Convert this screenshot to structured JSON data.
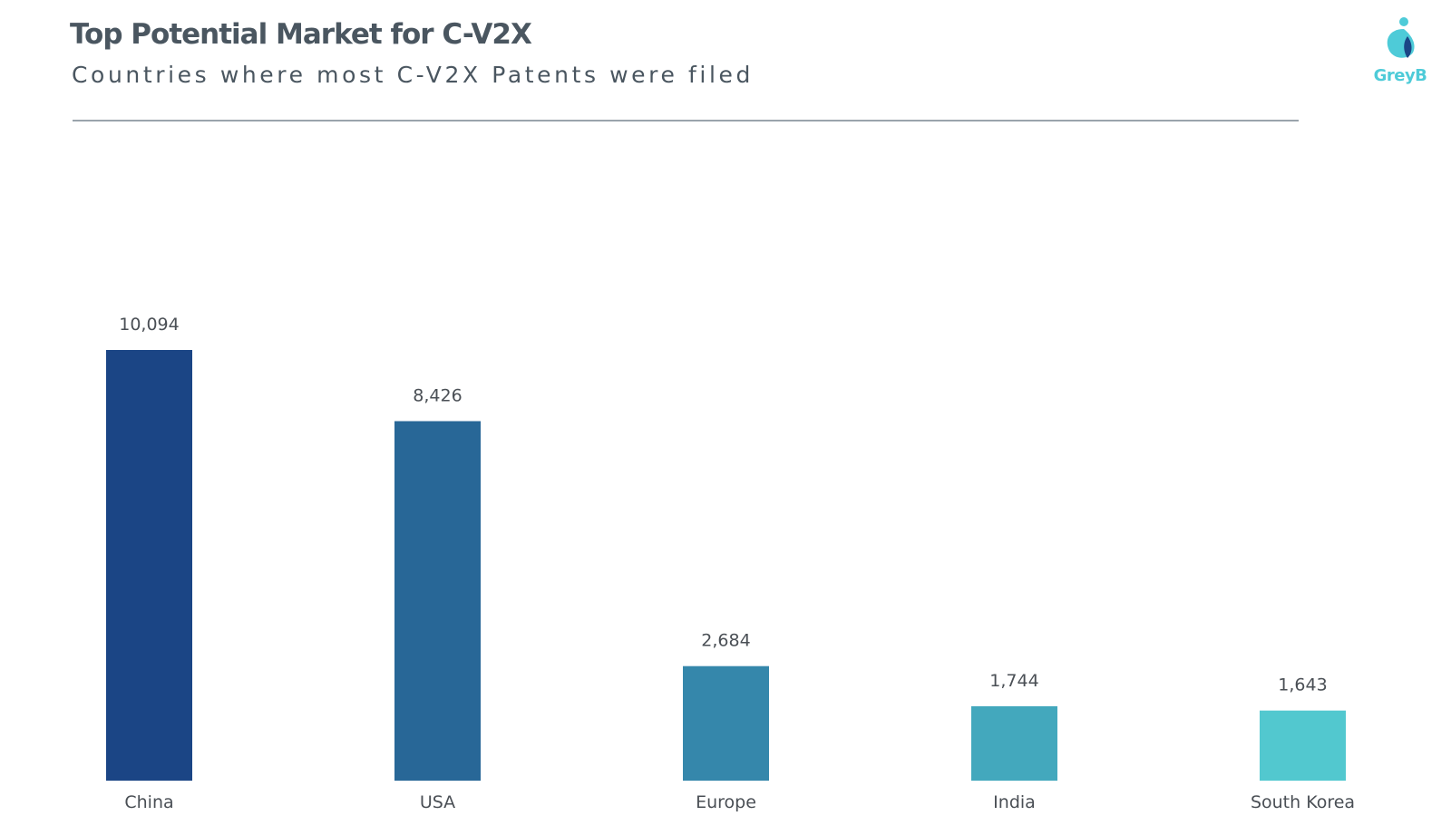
{
  "header": {
    "title": "Top Potential Market for C-V2X",
    "subtitle": "Countries where most C-V2X Patents were filed"
  },
  "logo": {
    "text": "GreyB",
    "icon": "greyb-logo-icon",
    "color": "#4ecbd8"
  },
  "chart_data": {
    "type": "bar",
    "title": "Top Potential Market for C-V2X",
    "subtitle": "Countries where most C-V2X Patents were filed",
    "categories": [
      "China",
      "USA",
      "Europe",
      "India",
      "South Korea"
    ],
    "values": [
      10094,
      8426,
      2684,
      1744,
      1643
    ],
    "value_labels": [
      "10,094",
      "8,426",
      "2,684",
      "1,744",
      "1,643"
    ],
    "colors": [
      "#1b4585",
      "#286797",
      "#3587ab",
      "#43a8bd",
      "#52c8cf"
    ],
    "xlabel": "",
    "ylabel": "",
    "ylim": [
      0,
      10094
    ],
    "grid": false,
    "legend": "none"
  }
}
